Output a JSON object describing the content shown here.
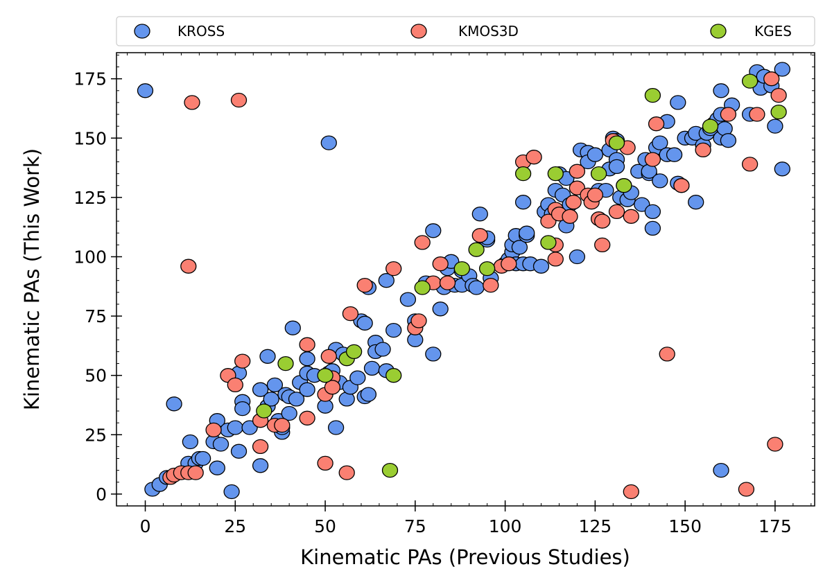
{
  "chart_data": {
    "type": "scatter",
    "title": "",
    "xlabel": "Kinematic PAs (Previous Studies)",
    "ylabel": "Kinematic PAs (This Work)",
    "xlim": [
      -8,
      186
    ],
    "ylim": [
      -5,
      186
    ],
    "xticks": [
      0,
      25,
      50,
      75,
      100,
      125,
      150,
      175
    ],
    "yticks": [
      0,
      25,
      50,
      75,
      100,
      125,
      150,
      175
    ],
    "grid": false,
    "legend_position": "top",
    "series": [
      {
        "name": "KROSS",
        "color": "#6495ED",
        "points": [
          [
            0,
            170
          ],
          [
            51,
            148
          ],
          [
            8,
            38
          ],
          [
            12.5,
            22
          ],
          [
            2,
            2
          ],
          [
            4,
            4
          ],
          [
            6,
            7
          ],
          [
            12,
            13
          ],
          [
            14,
            13
          ],
          [
            15,
            15
          ],
          [
            16,
            15
          ],
          [
            19,
            22
          ],
          [
            20,
            31
          ],
          [
            20,
            11
          ],
          [
            21,
            21
          ],
          [
            23,
            27
          ],
          [
            24,
            1
          ],
          [
            25,
            28
          ],
          [
            26,
            51
          ],
          [
            26,
            18
          ],
          [
            27,
            39
          ],
          [
            27,
            36
          ],
          [
            29,
            28
          ],
          [
            32,
            12
          ],
          [
            32,
            44
          ],
          [
            34,
            37
          ],
          [
            34,
            58
          ],
          [
            35,
            40
          ],
          [
            36,
            46
          ],
          [
            37,
            31
          ],
          [
            38,
            26
          ],
          [
            38,
            28
          ],
          [
            39,
            42
          ],
          [
            40,
            41
          ],
          [
            40,
            34
          ],
          [
            41,
            70
          ],
          [
            42,
            40
          ],
          [
            43,
            47
          ],
          [
            45,
            57
          ],
          [
            45,
            51
          ],
          [
            45,
            44
          ],
          [
            47,
            50
          ],
          [
            50,
            37
          ],
          [
            51,
            51
          ],
          [
            52,
            52
          ],
          [
            53,
            61
          ],
          [
            53,
            28
          ],
          [
            54,
            47
          ],
          [
            55,
            59
          ],
          [
            56,
            40
          ],
          [
            57,
            45
          ],
          [
            59,
            49
          ],
          [
            60,
            73
          ],
          [
            61,
            72
          ],
          [
            61,
            41
          ],
          [
            62,
            42
          ],
          [
            62,
            87
          ],
          [
            63,
            53
          ],
          [
            64,
            64
          ],
          [
            64,
            60
          ],
          [
            66,
            61
          ],
          [
            67,
            52
          ],
          [
            67,
            90
          ],
          [
            69,
            69
          ],
          [
            73,
            82
          ],
          [
            75,
            65
          ],
          [
            75,
            73
          ],
          [
            78,
            89
          ],
          [
            80,
            111
          ],
          [
            80,
            59
          ],
          [
            82,
            78
          ],
          [
            83,
            87
          ],
          [
            84,
            95
          ],
          [
            85,
            98
          ],
          [
            86,
            88
          ],
          [
            88,
            94
          ],
          [
            88,
            88
          ],
          [
            90,
            92
          ],
          [
            91,
            88
          ],
          [
            92,
            87
          ],
          [
            93,
            118
          ],
          [
            95,
            107
          ],
          [
            95,
            108
          ],
          [
            96,
            91
          ],
          [
            100,
            97
          ],
          [
            101,
            99
          ],
          [
            102,
            102
          ],
          [
            102,
            105
          ],
          [
            103,
            109
          ],
          [
            103,
            97
          ],
          [
            104,
            104
          ],
          [
            105,
            123
          ],
          [
            105,
            97
          ],
          [
            106,
            109
          ],
          [
            106,
            110
          ],
          [
            107,
            97
          ],
          [
            110,
            96
          ],
          [
            111,
            119
          ],
          [
            112,
            122
          ],
          [
            113,
            118
          ],
          [
            114,
            128
          ],
          [
            115,
            135
          ],
          [
            116,
            126
          ],
          [
            117,
            113
          ],
          [
            117,
            133
          ],
          [
            118,
            122
          ],
          [
            120,
            100
          ],
          [
            121,
            145
          ],
          [
            123,
            144
          ],
          [
            123,
            140
          ],
          [
            125,
            143
          ],
          [
            126,
            128
          ],
          [
            127,
            115
          ],
          [
            128,
            128
          ],
          [
            129,
            137
          ],
          [
            129,
            145
          ],
          [
            130,
            150
          ],
          [
            131,
            141
          ],
          [
            131,
            138
          ],
          [
            131,
            149
          ],
          [
            132,
            125
          ],
          [
            133,
            130
          ],
          [
            134,
            124
          ],
          [
            135,
            127
          ],
          [
            137,
            136
          ],
          [
            138,
            122
          ],
          [
            139,
            141
          ],
          [
            140,
            135
          ],
          [
            140,
            136
          ],
          [
            141,
            119
          ],
          [
            141,
            112
          ],
          [
            142,
            146
          ],
          [
            143,
            132
          ],
          [
            143,
            148
          ],
          [
            145,
            157
          ],
          [
            145,
            143
          ],
          [
            147,
            143
          ],
          [
            148,
            165
          ],
          [
            148,
            131
          ],
          [
            149,
            130
          ],
          [
            150,
            150
          ],
          [
            152,
            150
          ],
          [
            153,
            123
          ],
          [
            153,
            152
          ],
          [
            155,
            147
          ],
          [
            156,
            152
          ],
          [
            157,
            154
          ],
          [
            158,
            156
          ],
          [
            159,
            158
          ],
          [
            160,
            160
          ],
          [
            160,
            150
          ],
          [
            160,
            170
          ],
          [
            161,
            154
          ],
          [
            162,
            149
          ],
          [
            163,
            164
          ],
          [
            168,
            160
          ],
          [
            170,
            178
          ],
          [
            171,
            171
          ],
          [
            172,
            176
          ],
          [
            174,
            172
          ],
          [
            175,
            155
          ],
          [
            177,
            137
          ],
          [
            177,
            179
          ],
          [
            160,
            10
          ]
        ]
      },
      {
        "name": "KMOS3D",
        "color": "#FA8072",
        "points": [
          [
            13,
            165
          ],
          [
            26,
            166
          ],
          [
            12,
            96
          ],
          [
            7,
            7
          ],
          [
            8,
            8
          ],
          [
            10,
            9
          ],
          [
            12,
            9
          ],
          [
            14,
            9
          ],
          [
            19,
            27
          ],
          [
            23,
            50
          ],
          [
            25,
            46
          ],
          [
            27,
            56
          ],
          [
            32,
            31
          ],
          [
            32,
            20
          ],
          [
            36,
            29
          ],
          [
            38,
            29
          ],
          [
            45,
            63
          ],
          [
            45,
            32
          ],
          [
            50,
            13
          ],
          [
            50,
            42
          ],
          [
            51,
            58
          ],
          [
            52,
            49
          ],
          [
            52,
            45
          ],
          [
            56,
            9
          ],
          [
            57,
            76
          ],
          [
            61,
            88
          ],
          [
            69,
            95
          ],
          [
            75,
            70
          ],
          [
            76,
            73
          ],
          [
            77,
            106
          ],
          [
            80,
            89
          ],
          [
            82,
            97
          ],
          [
            84,
            89
          ],
          [
            93,
            109
          ],
          [
            96,
            88
          ],
          [
            99,
            96
          ],
          [
            101,
            97
          ],
          [
            105,
            140
          ],
          [
            108,
            142
          ],
          [
            112,
            115
          ],
          [
            114,
            120
          ],
          [
            114,
            99
          ],
          [
            114,
            105
          ],
          [
            115,
            118
          ],
          [
            118,
            117
          ],
          [
            119,
            123
          ],
          [
            120,
            129
          ],
          [
            120,
            136
          ],
          [
            123,
            126
          ],
          [
            124,
            123
          ],
          [
            125,
            126
          ],
          [
            126,
            116
          ],
          [
            127,
            105
          ],
          [
            127,
            115
          ],
          [
            130,
            149
          ],
          [
            131,
            119
          ],
          [
            134,
            146
          ],
          [
            135,
            117
          ],
          [
            135,
            1
          ],
          [
            141,
            141
          ],
          [
            142,
            156
          ],
          [
            145,
            59
          ],
          [
            149,
            130
          ],
          [
            155,
            145
          ],
          [
            162,
            160
          ],
          [
            167,
            2
          ],
          [
            168,
            139
          ],
          [
            170,
            160
          ],
          [
            174,
            175
          ],
          [
            175,
            21
          ],
          [
            176,
            168
          ]
        ]
      },
      {
        "name": "KGES",
        "color": "#9ACD32",
        "points": [
          [
            39,
            55
          ],
          [
            33,
            35
          ],
          [
            56,
            57
          ],
          [
            58,
            60
          ],
          [
            50,
            50
          ],
          [
            69,
            50
          ],
          [
            68,
            10
          ],
          [
            77,
            87
          ],
          [
            88,
            95
          ],
          [
            92,
            103
          ],
          [
            95,
            95
          ],
          [
            105,
            135
          ],
          [
            112,
            106
          ],
          [
            114,
            135
          ],
          [
            126,
            135
          ],
          [
            131,
            148
          ],
          [
            133,
            130
          ],
          [
            141,
            168
          ],
          [
            157,
            155
          ],
          [
            168,
            174
          ],
          [
            176,
            161
          ]
        ]
      }
    ]
  }
}
